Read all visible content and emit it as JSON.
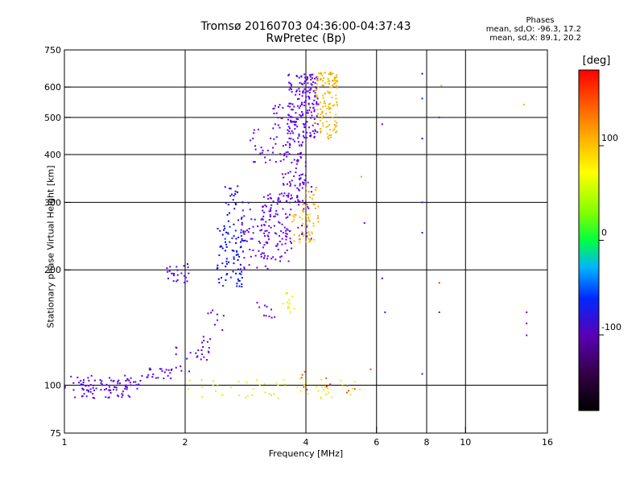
{
  "header": {
    "title_line1": "Tromsø 20160703 04:36:00-04:37:43",
    "title_line2": "RwPretec (Bp)"
  },
  "stats": {
    "heading": "Phases",
    "o_line": "mean, sd,O: -96.3, 17.2",
    "x_line": "mean, sd,X: 89.1, 20.2"
  },
  "colorbar": {
    "unit_label": "[deg]",
    "ticks": [
      {
        "value": 100,
        "label": "100"
      },
      {
        "value": 0,
        "label": "0"
      },
      {
        "value": -100,
        "label": "-100"
      }
    ],
    "range": [
      -180,
      180
    ]
  },
  "chart_data": {
    "type": "scatter",
    "title": "Tromsø 20160703 04:36:00-04:37:43",
    "subtitle": "RwPretec (Bp)",
    "xlabel": "Frequency [MHz]",
    "ylabel": "Stationary phase Virtual Height [km]",
    "xscale": "log",
    "yscale": "log",
    "xlim": [
      1,
      16
    ],
    "ylim": [
      75,
      750
    ],
    "xticks": [
      {
        "value": 1,
        "label": "1"
      },
      {
        "value": 2,
        "label": "2"
      },
      {
        "value": 4,
        "label": "4"
      },
      {
        "value": 6,
        "label": "6"
      },
      {
        "value": 8,
        "label": "8"
      },
      {
        "value": 10,
        "label": "10"
      },
      {
        "value": 16,
        "label": "16"
      }
    ],
    "yticks": [
      {
        "value": 75,
        "label": "75"
      },
      {
        "value": 100,
        "label": "100"
      },
      {
        "value": 200,
        "label": "200"
      },
      {
        "value": 300,
        "label": "300"
      },
      {
        "value": 400,
        "label": "400"
      },
      {
        "value": 500,
        "label": "500"
      },
      {
        "value": 600,
        "label": "600"
      },
      {
        "value": 750,
        "label": "750"
      }
    ],
    "xgrid": [
      2,
      4,
      6,
      8,
      10
    ],
    "ygrid": [
      100,
      200,
      300,
      400,
      500,
      600
    ],
    "grid": true,
    "color_variable": "phase [deg]",
    "color_range": [
      -180,
      180
    ],
    "clusters": [
      {
        "x": [
          1.0,
          1.55
        ],
        "y": [
          96,
          106
        ],
        "phase": -105,
        "n": 70
      },
      {
        "x": [
          1.55,
          1.85
        ],
        "y": [
          104,
          111
        ],
        "phase": -108,
        "n": 22
      },
      {
        "x": [
          1.85,
          2.3
        ],
        "y": [
          108,
          130
        ],
        "phase": -110,
        "n": 22
      },
      {
        "x": [
          2.2,
          2.5
        ],
        "y": [
          125,
          160
        ],
        "phase": -105,
        "n": 14
      },
      {
        "x": [
          1.8,
          2.05
        ],
        "y": [
          185,
          208
        ],
        "phase": -105,
        "n": 24
      },
      {
        "x": [
          2.4,
          2.8
        ],
        "y": [
          180,
          260
        ],
        "phase": -70,
        "n": 80
      },
      {
        "x": [
          2.5,
          2.8
        ],
        "y": [
          260,
          340
        ],
        "phase": -80,
        "n": 25
      },
      {
        "x": [
          2.75,
          3.3
        ],
        "y": [
          200,
          300
        ],
        "phase": -110,
        "n": 60
      },
      {
        "x": [
          3.1,
          3.7
        ],
        "y": [
          210,
          320
        ],
        "phase": -125,
        "n": 100
      },
      {
        "x": [
          2.9,
          3.4
        ],
        "y": [
          380,
          470
        ],
        "phase": -115,
        "n": 25
      },
      {
        "x": [
          3.3,
          3.6
        ],
        "y": [
          470,
          540
        ],
        "phase": -110,
        "n": 15
      },
      {
        "x": [
          3.45,
          4.0
        ],
        "y": [
          300,
          440
        ],
        "phase": -110,
        "n": 80
      },
      {
        "x": [
          3.6,
          4.3
        ],
        "y": [
          440,
          650
        ],
        "phase": -110,
        "n": 180
      },
      {
        "x": [
          3.8,
          4.15
        ],
        "y": [
          240,
          340
        ],
        "phase": -110,
        "n": 25
      },
      {
        "x": [
          3.7,
          4.2
        ],
        "y": [
          235,
          280
        ],
        "phase": 95,
        "n": 40
      },
      {
        "x": [
          3.9,
          4.3
        ],
        "y": [
          260,
          330
        ],
        "phase": 105,
        "n": 25
      },
      {
        "x": [
          4.2,
          4.8
        ],
        "y": [
          440,
          660
        ],
        "phase": 100,
        "n": 130
      },
      {
        "x": [
          3.5,
          3.75
        ],
        "y": [
          155,
          175
        ],
        "phase": 70,
        "n": 12
      },
      {
        "x": [
          3.0,
          3.4
        ],
        "y": [
          150,
          170
        ],
        "phase": -125,
        "n": 10
      },
      {
        "x": [
          2.0,
          5.6
        ],
        "y": [
          92,
          104
        ],
        "phase": 70,
        "n": 55
      },
      {
        "x": [
          3.9,
          5.3
        ],
        "y": [
          95,
          110
        ],
        "phase": 150,
        "n": 12
      },
      {
        "x": [
          1.05,
          1.5
        ],
        "y": [
          92,
          98
        ],
        "phase": -110,
        "n": 28
      }
    ],
    "points": [
      {
        "x": 6.2,
        "y": 480,
        "phase": -110
      },
      {
        "x": 6.2,
        "y": 190,
        "phase": -100
      },
      {
        "x": 6.3,
        "y": 155,
        "phase": -60
      },
      {
        "x": 7.8,
        "y": 650,
        "phase": -70
      },
      {
        "x": 7.8,
        "y": 560,
        "phase": -60
      },
      {
        "x": 7.8,
        "y": 440,
        "phase": -80
      },
      {
        "x": 7.8,
        "y": 300,
        "phase": -100
      },
      {
        "x": 7.8,
        "y": 250,
        "phase": -90
      },
      {
        "x": 7.8,
        "y": 107,
        "phase": -100
      },
      {
        "x": 8.6,
        "y": 500,
        "phase": -130
      },
      {
        "x": 8.6,
        "y": 185,
        "phase": 160
      },
      {
        "x": 8.6,
        "y": 155,
        "phase": -110
      },
      {
        "x": 8.7,
        "y": 605,
        "phase": 100
      },
      {
        "x": 14.0,
        "y": 540,
        "phase": 100
      },
      {
        "x": 14.2,
        "y": 155,
        "phase": -120
      },
      {
        "x": 14.2,
        "y": 135,
        "phase": -125
      },
      {
        "x": 14.2,
        "y": 145,
        "phase": -120
      },
      {
        "x": 5.5,
        "y": 350,
        "phase": 110
      },
      {
        "x": 5.8,
        "y": 110,
        "phase": 150
      },
      {
        "x": 5.6,
        "y": 265,
        "phase": -120
      }
    ]
  }
}
